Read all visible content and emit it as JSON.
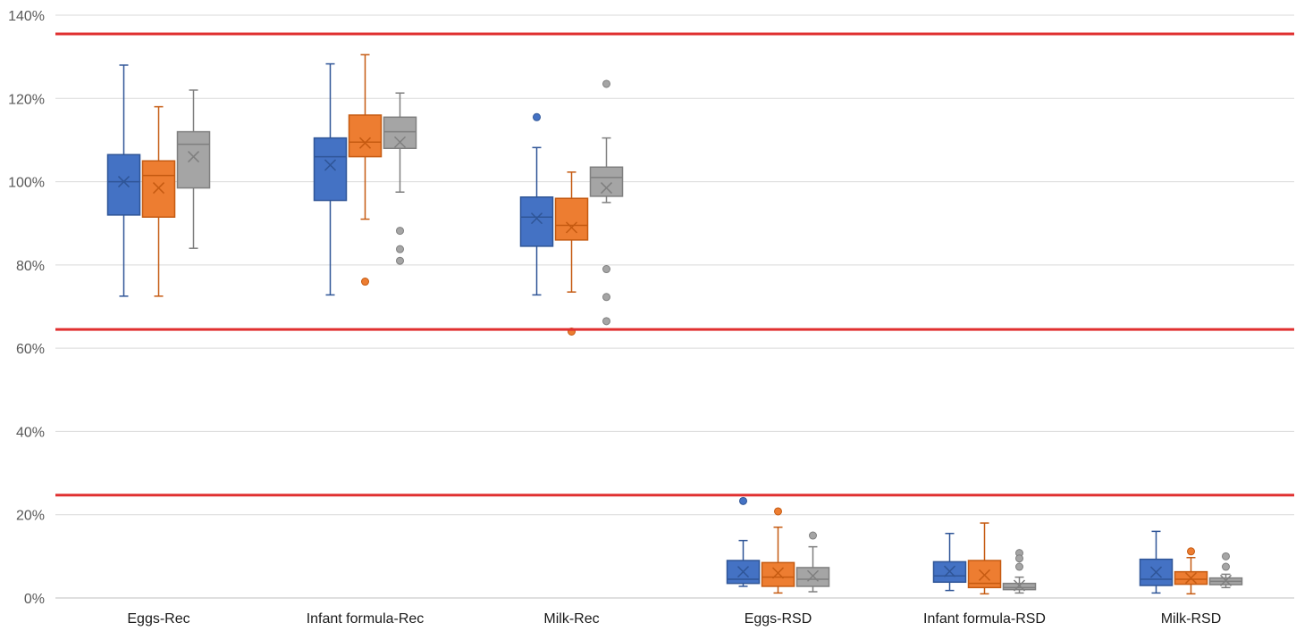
{
  "chart_data": {
    "type": "box",
    "title": "",
    "xlabel": "",
    "ylabel": "",
    "ylim": [
      0,
      140
    ],
    "y_ticks": [
      "0%",
      "20%",
      "40%",
      "60%",
      "80%",
      "100%",
      "120%",
      "140%"
    ],
    "y_tick_values": [
      0,
      20,
      40,
      60,
      80,
      100,
      120,
      140
    ],
    "grid": true,
    "legend": "none",
    "categories": [
      "Eggs-Rec",
      "Infant formula-Rec",
      "Milk-Rec",
      "Eggs-RSD",
      "Infant formula-RSD",
      "Milk-RSD"
    ],
    "reference_lines": [
      {
        "value": 135.5,
        "color": "#e03030"
      },
      {
        "value": 64.5,
        "color": "#e03030"
      },
      {
        "value": 24.7,
        "color": "#e03030"
      }
    ],
    "series": [
      {
        "color": "#4472c4",
        "stroke": "#2f5597",
        "boxes": [
          {
            "min": 72.5,
            "q1": 92,
            "median": 100,
            "q3": 106.5,
            "max": 128,
            "mean": 100,
            "outliers": []
          },
          {
            "min": 72.8,
            "q1": 95.5,
            "median": 106,
            "q3": 110.5,
            "max": 128.3,
            "mean": 104,
            "outliers": []
          },
          {
            "min": 72.8,
            "q1": 84.5,
            "median": 91.5,
            "q3": 96.3,
            "max": 108.2,
            "mean": 91.2,
            "outliers": [
              115.5
            ]
          },
          {
            "min": 2.8,
            "q1": 3.5,
            "median": 4.5,
            "q3": 9,
            "max": 13.8,
            "mean": 6.3,
            "outliers": [
              23.3
            ]
          },
          {
            "min": 1.8,
            "q1": 3.8,
            "median": 5.3,
            "q3": 8.7,
            "max": 15.5,
            "mean": 6.4,
            "outliers": []
          },
          {
            "min": 1.2,
            "q1": 3,
            "median": 4.5,
            "q3": 9.3,
            "max": 16,
            "mean": 6.2,
            "outliers": []
          }
        ]
      },
      {
        "color": "#ed7d31",
        "stroke": "#c55a11",
        "boxes": [
          {
            "min": 72.5,
            "q1": 91.5,
            "median": 101.5,
            "q3": 105,
            "max": 118,
            "mean": 98.5,
            "outliers": []
          },
          {
            "min": 91,
            "q1": 106,
            "median": 109.5,
            "q3": 116,
            "max": 130.5,
            "mean": 109.3,
            "outliers": [
              76
            ]
          },
          {
            "min": 73.5,
            "q1": 86,
            "median": 89.5,
            "q3": 96,
            "max": 102.3,
            "mean": 89,
            "outliers": [
              64
            ]
          },
          {
            "min": 1.2,
            "q1": 2.8,
            "median": 5,
            "q3": 8.5,
            "max": 17,
            "mean": 6,
            "outliers": [
              20.8
            ]
          },
          {
            "min": 1,
            "q1": 2.5,
            "median": 3.5,
            "q3": 9,
            "max": 18,
            "mean": 5.5,
            "outliers": []
          },
          {
            "min": 1,
            "q1": 3.3,
            "median": 4.5,
            "q3": 6.3,
            "max": 9.7,
            "mean": 4.8,
            "outliers": [
              11.2
            ]
          }
        ]
      },
      {
        "color": "#a5a5a5",
        "stroke": "#7f7f7f",
        "boxes": [
          {
            "min": 84,
            "q1": 98.5,
            "median": 109,
            "q3": 112,
            "max": 122,
            "mean": 106,
            "outliers": []
          },
          {
            "min": 97.5,
            "q1": 108,
            "median": 112,
            "q3": 115.5,
            "max": 121.3,
            "mean": 109.5,
            "outliers": [
              88.2,
              83.8,
              81
            ]
          },
          {
            "min": 95,
            "q1": 96.5,
            "median": 101,
            "q3": 103.5,
            "max": 110.5,
            "mean": 98.5,
            "outliers": [
              123.5,
              79,
              72.3,
              66.5
            ]
          },
          {
            "min": 1.5,
            "q1": 2.8,
            "median": 4.5,
            "q3": 7.3,
            "max": 12.3,
            "mean": 5.3,
            "outliers": [
              15
            ]
          },
          {
            "min": 1.2,
            "q1": 2,
            "median": 2.5,
            "q3": 3.5,
            "max": 5,
            "mean": 3,
            "outliers": [
              10.8,
              9.5,
              7.5
            ]
          },
          {
            "min": 2.5,
            "q1": 3.2,
            "median": 4,
            "q3": 4.8,
            "max": 5.7,
            "mean": 4.2,
            "outliers": [
              10,
              7.5
            ]
          }
        ]
      }
    ]
  }
}
